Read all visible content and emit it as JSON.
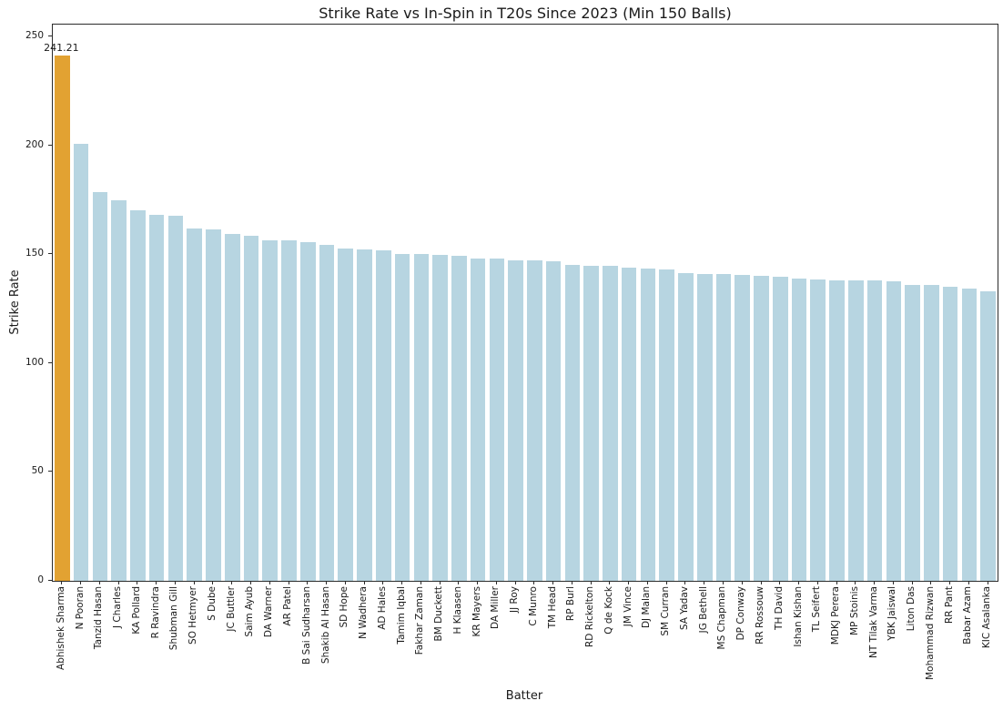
{
  "chart_data": {
    "type": "bar",
    "title": "Strike Rate vs In-Spin in T20s Since 2023 (Min 150 Balls)",
    "xlabel": "Batter",
    "ylabel": "Strike Rate",
    "ylim": [
      0,
      255.5
    ],
    "yticks": [
      0,
      50,
      100,
      150,
      200,
      250
    ],
    "grid": false,
    "legend": false,
    "bar_color": "#B7D5E1",
    "highlight_color": "#E2A232",
    "highlight_index": 0,
    "annotation": {
      "index": 0,
      "text": "241.21"
    },
    "categories": [
      "Abhishek Sharma",
      "N Pooran",
      "Tanzid Hasan",
      "J Charles",
      "KA Pollard",
      "R Ravindra",
      "Shubman Gill",
      "SO Hetmyer",
      "S Dube",
      "JC Buttler",
      "Saim Ayub",
      "DA Warner",
      "AR Patel",
      "B Sai Sudharsan",
      "Shakib Al Hasan",
      "SD Hope",
      "N Wadhera",
      "AD Hales",
      "Tamim Iqbal",
      "Fakhar Zaman",
      "BM Duckett",
      "H Klaasen",
      "KR Mayers",
      "DA Miller",
      "JJ Roy",
      "C Munro",
      "TM Head",
      "RP Burl",
      "RD Rickelton",
      "Q de Kock",
      "JM Vince",
      "DJ Malan",
      "SM Curran",
      "SA Yadav",
      "JG Bethell",
      "MS Chapman",
      "DP Conway",
      "RR Rossouw",
      "TH David",
      "Ishan Kishan",
      "TL Seifert",
      "MDKJ Perera",
      "MP Stoinis",
      "NT Tilak Varma",
      "YBK Jaiswal",
      "Liton Das",
      "Mohammad Rizwan",
      "RR Pant",
      "Babar Azam",
      "KIC Asalanka"
    ],
    "values": [
      241.21,
      200.7,
      178.5,
      174.6,
      170.4,
      168.1,
      167.8,
      161.8,
      161.6,
      159.3,
      158.4,
      156.5,
      156.4,
      155.6,
      154.2,
      152.7,
      152.3,
      151.8,
      150.2,
      150.0,
      149.6,
      149.5,
      148.2,
      148.1,
      147.2,
      147.0,
      146.9,
      145.2,
      144.8,
      144.7,
      143.7,
      143.6,
      143.0,
      141.2,
      141.1,
      141.0,
      140.5,
      140.0,
      139.7,
      138.8,
      138.4,
      138.1,
      137.9,
      137.8,
      137.5,
      136.0,
      135.9,
      134.9,
      134.2,
      133.1
    ]
  }
}
